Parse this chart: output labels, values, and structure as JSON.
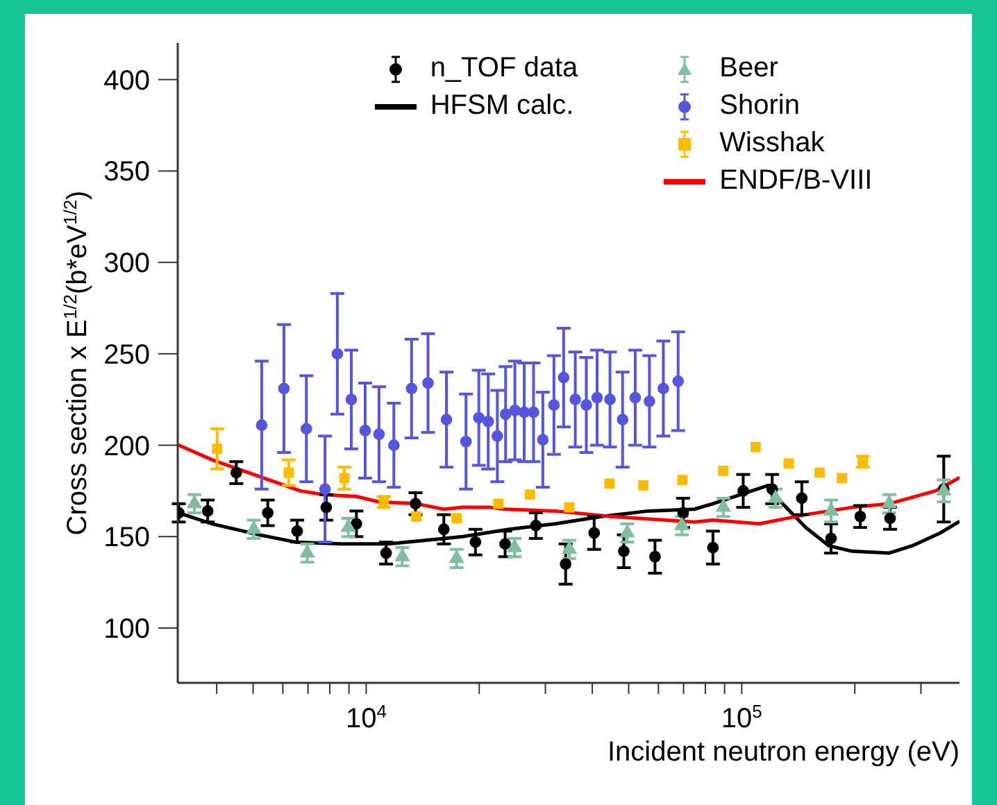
{
  "chart_data": {
    "type": "scatter",
    "xlabel": "Incident neutron energy (eV)",
    "ylabel": "Cross section x E$^{1/2}$(b*eV$^{1/2}$)",
    "log": "x",
    "xlim": [
      3150,
      380000
    ],
    "ylim": [
      70,
      420
    ],
    "xticks": [
      {
        "value": 4000,
        "label": null
      },
      {
        "value": 5000,
        "label": null
      },
      {
        "value": 6000,
        "label": null
      },
      {
        "value": 7000,
        "label": null
      },
      {
        "value": 8000,
        "label": null
      },
      {
        "value": 9000,
        "label": null
      },
      {
        "value": 10000,
        "label": "10$^{4}$"
      },
      {
        "value": 20000,
        "label": null
      },
      {
        "value": 30000,
        "label": null
      },
      {
        "value": 40000,
        "label": null
      },
      {
        "value": 50000,
        "label": null
      },
      {
        "value": 60000,
        "label": null
      },
      {
        "value": 70000,
        "label": null
      },
      {
        "value": 80000,
        "label": null
      },
      {
        "value": 90000,
        "label": null
      },
      {
        "value": 100000,
        "label": "10$^{5}$"
      },
      {
        "value": 200000,
        "label": null
      },
      {
        "value": 300000,
        "label": null
      }
    ],
    "yticks": [
      100,
      150,
      200,
      250,
      300,
      350,
      400
    ],
    "legend": "top",
    "series": [
      {
        "name": "n_TOF data",
        "marker": "circle",
        "color": "#000000",
        "x": [
          3170,
          3785,
          4510,
          5470,
          6550,
          7830,
          9420,
          11300,
          13530,
          16100,
          19540,
          23440,
          28300,
          33970,
          40460,
          48530,
          58750,
          69800,
          83800,
          100900,
          120500,
          144500,
          172900,
          206800,
          248300,
          345000
        ],
        "values": [
          163,
          164,
          185,
          163,
          153,
          166,
          157,
          141,
          168,
          154,
          147,
          146,
          156,
          135,
          152,
          142,
          139,
          163,
          144,
          175,
          176,
          171,
          149,
          161,
          160,
          176
        ],
        "errors": [
          5,
          6,
          6,
          7,
          6,
          7,
          7,
          6,
          6,
          8,
          7,
          7,
          7,
          11,
          9,
          9,
          9,
          8,
          9,
          9,
          8,
          9,
          8,
          6,
          6,
          18
        ]
      },
      {
        "name": "HFSM calc.",
        "type": "line",
        "marker": "none",
        "color": "#000000",
        "x": [
          3170,
          3890,
          5180,
          6490,
          8630,
          11460,
          16100,
          18060,
          23990,
          31910,
          42380,
          56340,
          74820,
          83800,
          99400,
          117800,
          128400,
          148000,
          170600,
          196600,
          247000,
          284500,
          337600,
          378000
        ],
        "values": [
          163,
          157,
          151,
          147,
          146,
          146,
          149,
          150,
          154,
          157,
          161,
          164,
          165,
          168,
          173,
          178,
          168,
          155,
          145,
          142,
          141,
          145,
          152,
          158
        ]
      },
      {
        "name": "Beer",
        "marker": "triangle",
        "color": "#7fbf9f",
        "x": [
          3490,
          5020,
          6970,
          8960,
          12480,
          17410,
          24840,
          34740,
          49560,
          69300,
          89300,
          123000,
          172900,
          247000,
          345000
        ],
        "values": [
          168,
          154,
          141,
          155,
          139,
          138,
          144,
          143,
          152,
          156,
          166,
          171,
          164,
          168,
          175
        ],
        "errors": [
          5,
          5,
          5,
          5,
          5,
          5,
          5,
          5,
          5,
          5,
          5,
          5,
          6,
          5,
          6
        ]
      },
      {
        "name": "Shorin",
        "marker": "circle",
        "color": "#5555dd",
        "x": [
          5270,
          6040,
          6930,
          7770,
          8380,
          9130,
          9940,
          10820,
          11850,
          13210,
          14610,
          16360,
          18440,
          19950,
          21130,
          22350,
          23510,
          24890,
          26350,
          27900,
          29540,
          31620,
          33560,
          36040,
          38560,
          41200,
          44590,
          48170,
          52040,
          56780,
          61830,
          67710
        ],
        "values": [
          211,
          231,
          209,
          176,
          250,
          225,
          208,
          206,
          200,
          231,
          234,
          214,
          202,
          215,
          213,
          205,
          217,
          219,
          218,
          218,
          203,
          222,
          237,
          225,
          222,
          226,
          225,
          214,
          226,
          224,
          231,
          235
        ],
        "errors": [
          35,
          35,
          29,
          29,
          33,
          27,
          26,
          26,
          23,
          27,
          27,
          26,
          26,
          26,
          26,
          25,
          26,
          27,
          27,
          27,
          26,
          27,
          27,
          26,
          26,
          26,
          26,
          26,
          26,
          25,
          26,
          27
        ]
      },
      {
        "name": "Wisshak",
        "marker": "square",
        "color": "#ffbb00",
        "x": [
          4010,
          6220,
          8750,
          11140,
          13600,
          17410,
          22490,
          27290,
          34740,
          44450,
          54700,
          69500,
          89300,
          108900,
          133300,
          161200,
          184800,
          210000
        ],
        "values": [
          198,
          185,
          182,
          169,
          161,
          160,
          168,
          173,
          166,
          179,
          178,
          181,
          186,
          199,
          190,
          185,
          182,
          191
        ],
        "errors": [
          11,
          7,
          6,
          3,
          null,
          null,
          null,
          null,
          null,
          null,
          null,
          null,
          null,
          null,
          null,
          null,
          null,
          3
        ]
      },
      {
        "name": "ENDF/B-VIII",
        "type": "line",
        "marker": "none",
        "color": "#ff0000",
        "x": [
          3170,
          3890,
          5180,
          6680,
          7690,
          9390,
          10820,
          13600,
          16100,
          18060,
          21410,
          23320,
          31910,
          44880,
          74820,
          83800,
          111400,
          148000,
          196600,
          247000,
          327800,
          378000
        ],
        "values": [
          200,
          192,
          183,
          175,
          173,
          172,
          169,
          168,
          165,
          166,
          166,
          165,
          164,
          161,
          158,
          159,
          157,
          162,
          166,
          168,
          175,
          182
        ]
      }
    ]
  }
}
